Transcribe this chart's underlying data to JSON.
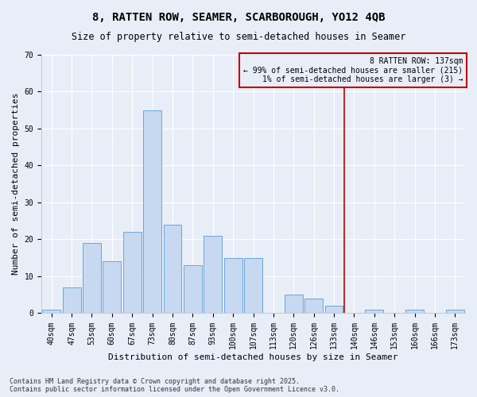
{
  "title": "8, RATTEN ROW, SEAMER, SCARBOROUGH, YO12 4QB",
  "subtitle": "Size of property relative to semi-detached houses in Seamer",
  "xlabel": "Distribution of semi-detached houses by size in Seamer",
  "ylabel": "Number of semi-detached properties",
  "bar_labels": [
    "40sqm",
    "47sqm",
    "53sqm",
    "60sqm",
    "67sqm",
    "73sqm",
    "80sqm",
    "87sqm",
    "93sqm",
    "100sqm",
    "107sqm",
    "113sqm",
    "120sqm",
    "126sqm",
    "133sqm",
    "140sqm",
    "146sqm",
    "153sqm",
    "160sqm",
    "166sqm",
    "173sqm"
  ],
  "bar_values": [
    1,
    7,
    19,
    14,
    22,
    55,
    24,
    13,
    21,
    15,
    15,
    0,
    5,
    4,
    2,
    0,
    1,
    0,
    1,
    0,
    1
  ],
  "bar_color": "#c6d9f0",
  "bar_edge_color": "#5b9bd5",
  "vline_color": "#c00000",
  "annotation_text": "8 RATTEN ROW: 137sqm\n← 99% of semi-detached houses are smaller (215)\n1% of semi-detached houses are larger (3) →",
  "ylim": [
    0,
    70
  ],
  "yticks": [
    0,
    10,
    20,
    30,
    40,
    50,
    60,
    70
  ],
  "footer": "Contains HM Land Registry data © Crown copyright and database right 2025.\nContains public sector information licensed under the Open Government Licence v3.0.",
  "background_color": "#e8eef7",
  "grid_color": "#ffffff",
  "title_fontsize": 10,
  "subtitle_fontsize": 8.5,
  "label_fontsize": 8,
  "tick_fontsize": 7,
  "footer_fontsize": 6,
  "vline_bar_index": 14.5
}
